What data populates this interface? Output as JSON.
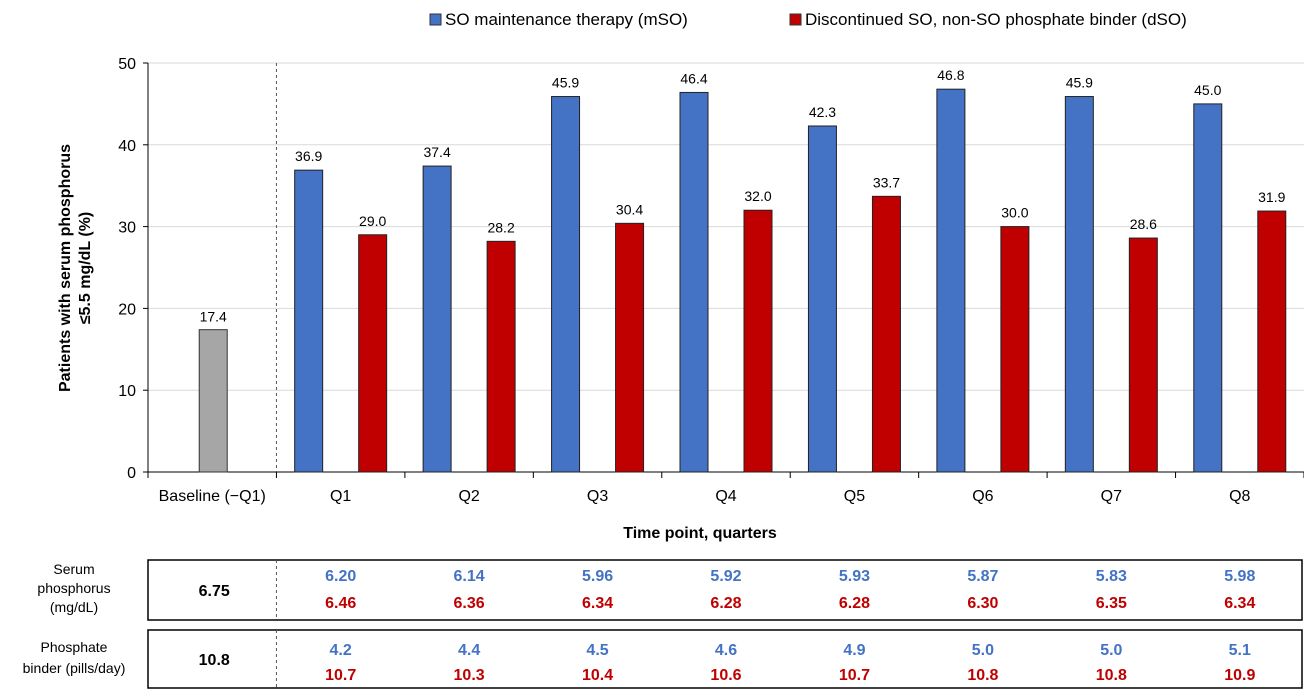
{
  "chart_data": {
    "type": "bar",
    "categories": [
      "Baseline (−Q1)",
      "Q1",
      "Q2",
      "Q3",
      "Q4",
      "Q5",
      "Q6",
      "Q7",
      "Q8"
    ],
    "baseline": {
      "value": 17.4,
      "label": "17.4",
      "color": "#a6a6a6"
    },
    "series": [
      {
        "name": "SO maintenance therapy (mSO)",
        "color": "#4472c4",
        "values": [
          null,
          36.9,
          37.4,
          45.9,
          46.4,
          42.3,
          46.8,
          45.9,
          45.0
        ],
        "labels": [
          "",
          "36.9",
          "37.4",
          "45.9",
          "46.4",
          "42.3",
          "46.8",
          "45.9",
          "45.0"
        ]
      },
      {
        "name": "Discontinued SO, non-SO phosphate binder (dSO)",
        "color": "#c00000",
        "values": [
          null,
          29.0,
          28.2,
          30.4,
          32.0,
          33.7,
          30.0,
          28.6,
          31.9
        ],
        "labels": [
          "",
          "29.0",
          "28.2",
          "30.4",
          "32.0",
          "33.7",
          "30.0",
          "28.6",
          "31.9"
        ]
      }
    ],
    "xlabel": "Time point, quarters",
    "ylabel_lines": [
      "Patients with serum phosphorus",
      "≤5.5 mg/dL (%)"
    ],
    "ylim": [
      0,
      50
    ],
    "yticks": [
      0,
      10,
      20,
      30,
      40,
      50
    ],
    "grid": true,
    "legend_position": "top-right"
  },
  "table": {
    "rows": [
      {
        "label_lines": [
          "Serum",
          "phosphorus",
          "(mg/dL)"
        ],
        "baseline": "6.75",
        "mso": [
          "6.20",
          "6.14",
          "5.96",
          "5.92",
          "5.93",
          "5.87",
          "5.83",
          "5.98"
        ],
        "dso": [
          "6.46",
          "6.36",
          "6.34",
          "6.28",
          "6.28",
          "6.30",
          "6.35",
          "6.34"
        ]
      },
      {
        "label_lines": [
          "Phosphate",
          "binder (pills/day)"
        ],
        "baseline": "10.8",
        "mso": [
          "4.2",
          "4.4",
          "4.5",
          "4.6",
          "4.9",
          "5.0",
          "5.0",
          "5.1"
        ],
        "dso": [
          "10.7",
          "10.3",
          "10.4",
          "10.6",
          "10.7",
          "10.8",
          "10.8",
          "10.9"
        ]
      }
    ],
    "colors": {
      "mso": "#4472c4",
      "dso": "#c00000"
    }
  }
}
